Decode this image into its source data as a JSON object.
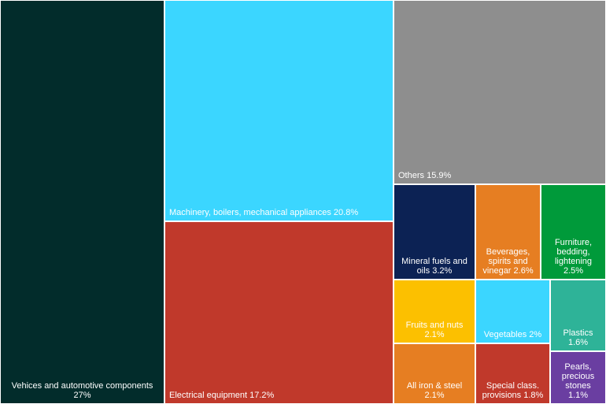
{
  "chart_data": {
    "type": "treemap",
    "title": "",
    "items": [
      {
        "name": "Vehices and automotive components",
        "value": 27,
        "label": "27%",
        "color": "#022c2b"
      },
      {
        "name": "Machinery, boilers, mechanical appliances",
        "value": 20.8,
        "label": "20.8%",
        "color": "#3bd6ff"
      },
      {
        "name": "Electrical equipment",
        "value": 17.2,
        "label": "17.2%",
        "color": "#c0392b"
      },
      {
        "name": "Others",
        "value": 15.9,
        "label": "15.9%",
        "color": "#8e8e8e"
      },
      {
        "name": "Mineral fuels and oils",
        "value": 3.2,
        "label": "3.2%",
        "color": "#0c2254"
      },
      {
        "name": "Beverages, spirits and vinegar",
        "value": 2.6,
        "label": "2.6%",
        "color": "#e67e22"
      },
      {
        "name": "Furniture, bedding, lightening",
        "value": 2.5,
        "label": "2.5%",
        "color": "#009a3a"
      },
      {
        "name": "Fruits and nuts",
        "value": 2.1,
        "label": "2.1%",
        "color": "#fcc000"
      },
      {
        "name": "Vegetables",
        "value": 2,
        "label": "2%",
        "color": "#3bd6ff"
      },
      {
        "name": "Plastics",
        "value": 1.6,
        "label": "1.6%",
        "color": "#2eb398"
      },
      {
        "name": "All iron & steel",
        "value": 2.1,
        "label": "2.1%",
        "color": "#e67e22"
      },
      {
        "name": "Special class. provisions",
        "value": 1.8,
        "label": "1.8%",
        "color": "#c0392b"
      },
      {
        "name": "Pearls, precious stones",
        "value": 1.1,
        "label": "1.1%",
        "color": "#6a3ea1"
      }
    ]
  }
}
